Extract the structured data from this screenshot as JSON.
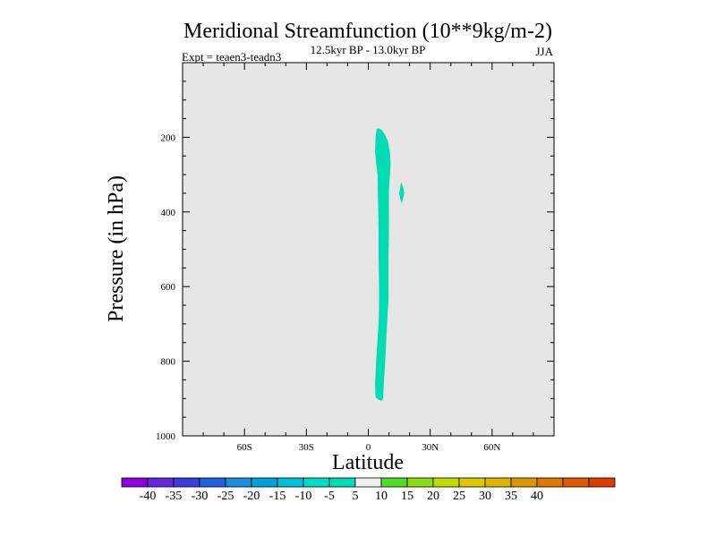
{
  "chart_data": {
    "type": "heatmap",
    "title": "Meridional Streamfunction (10**9kg/m-2)",
    "subtitle": "12.5kyr BP - 13.0kyr BP",
    "left_label": "Expt = teaen3-teadn3",
    "season": "JJA",
    "xlabel": "Latitude",
    "ylabel": "Pressure (in hPa)",
    "xlim": [
      -90,
      90
    ],
    "ylim": [
      1000,
      0
    ],
    "x_ticks": [
      {
        "value": -60,
        "label": "60S"
      },
      {
        "value": -30,
        "label": "30S"
      },
      {
        "value": 0,
        "label": "0"
      },
      {
        "value": 30,
        "label": "30N"
      },
      {
        "value": 60,
        "label": "60N"
      }
    ],
    "y_ticks": [
      {
        "value": 200,
        "label": "200"
      },
      {
        "value": 400,
        "label": "400"
      },
      {
        "value": 600,
        "label": "600"
      },
      {
        "value": 800,
        "label": "800"
      },
      {
        "value": 1000,
        "label": "1000"
      }
    ],
    "background_level": "-5 to 5",
    "background_color": "#e6e6e6",
    "features": [
      {
        "name": "main-negative-cell",
        "level": "-10 to -5",
        "color": "#00dcb4",
        "outline": [
          [
            4.0,
            178
          ],
          [
            5.0,
            176
          ],
          [
            6.5,
            180
          ],
          [
            8.0,
            192
          ],
          [
            9.5,
            210
          ],
          [
            10.5,
            240
          ],
          [
            10.8,
            270
          ],
          [
            10.5,
            300
          ],
          [
            10.0,
            340
          ],
          [
            10.0,
            400
          ],
          [
            10.0,
            460
          ],
          [
            9.8,
            520
          ],
          [
            9.8,
            600
          ],
          [
            9.8,
            630
          ],
          [
            9.5,
            660
          ],
          [
            8.7,
            740
          ],
          [
            8.2,
            800
          ],
          [
            7.5,
            860
          ],
          [
            7.2,
            900
          ],
          [
            6.5,
            906
          ],
          [
            5.0,
            903
          ],
          [
            3.5,
            897
          ],
          [
            3.3,
            860
          ],
          [
            3.8,
            800
          ],
          [
            4.5,
            740
          ],
          [
            5.0,
            700
          ],
          [
            5.2,
            650
          ],
          [
            5.2,
            600
          ],
          [
            5.0,
            520
          ],
          [
            5.0,
            460
          ],
          [
            4.8,
            400
          ],
          [
            4.6,
            330
          ],
          [
            4.5,
            300
          ],
          [
            3.8,
            270
          ],
          [
            3.3,
            240
          ],
          [
            3.5,
            200
          ]
        ]
      },
      {
        "name": "small-negative-cell",
        "level": "-10 to -5",
        "color": "#00dcb4",
        "outline": [
          [
            16.0,
            320
          ],
          [
            16.8,
            333
          ],
          [
            17.5,
            350
          ],
          [
            16.8,
            364
          ],
          [
            16.2,
            378
          ],
          [
            15.5,
            365
          ],
          [
            15.0,
            350
          ],
          [
            15.5,
            334
          ]
        ]
      }
    ],
    "colorbar": {
      "colors": [
        "#8c00dc",
        "#6428dc",
        "#3c3cdc",
        "#1e64dc",
        "#1e8cdc",
        "#00a0dc",
        "#00c0dc",
        "#00dcc8",
        "#00dcb4",
        "#f0f0f0",
        "#50dc28",
        "#8cdc14",
        "#bedc00",
        "#dcc800",
        "#dcb400",
        "#dc9600",
        "#dc7800",
        "#dc5a00",
        "#dc3c00"
      ],
      "labels": [
        "-40",
        "-35",
        "-30",
        "-25",
        "-20",
        "-15",
        "-10",
        "-5",
        "5",
        "10",
        "15",
        "20",
        "25",
        "30",
        "35",
        "40"
      ]
    }
  }
}
